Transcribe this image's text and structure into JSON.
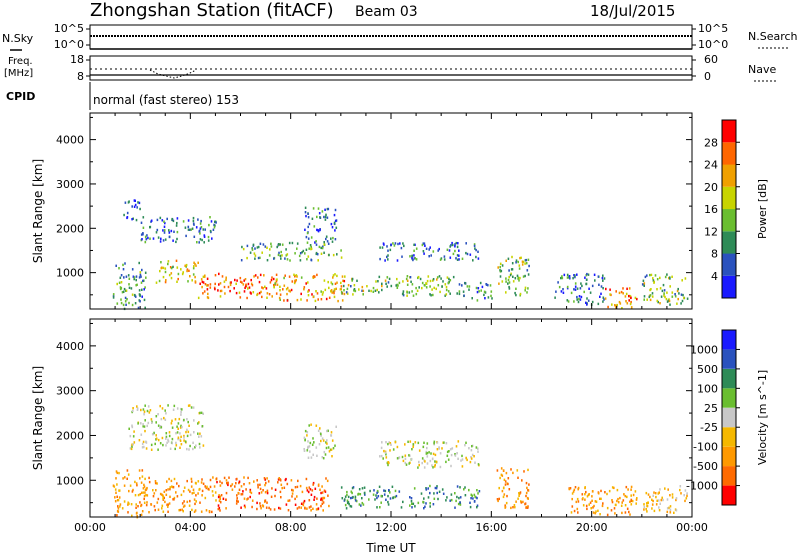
{
  "header": {
    "title": "Zhongshan Station (fitACF)",
    "beam": "Beam 03",
    "date": "18/Jul/2015"
  },
  "strips": {
    "nsky": {
      "label": "N.Sky",
      "top": "10^5",
      "bottom": "10^0"
    },
    "nsearch": {
      "label": "N.Search",
      "top": "10^5",
      "bottom": "10^0"
    },
    "freq": {
      "label_line1": "Freq.",
      "label_line2": "[MHz]",
      "top": "18",
      "bottom": "8"
    },
    "nave": {
      "label": "Nave",
      "top": "60",
      "bottom": "0"
    },
    "cpid": {
      "label": "CPID",
      "text": "normal (fast stereo) 153"
    }
  },
  "axes": {
    "xlabel": "Time UT",
    "ylabel": "Slant Range [km]"
  },
  "chart_data": [
    {
      "type": "heatmap",
      "title": "",
      "parameter": "Power",
      "units": "dB",
      "xlabel": "Time UT",
      "ylabel": "Slant Range [km]",
      "x_ticks": [
        "00:00",
        "04:00",
        "08:00",
        "12:00",
        "16:00",
        "20:00",
        "00:00"
      ],
      "xlim_hours": [
        0,
        24
      ],
      "y_ticks": [
        1000,
        2000,
        3000,
        4000
      ],
      "ylim": [
        180,
        4600
      ],
      "colorbar": {
        "label": "Power [dB]",
        "ticks": [
          4,
          8,
          12,
          16,
          20,
          24,
          28
        ],
        "range": [
          0,
          32
        ],
        "colors": [
          "#1a1aff",
          "#2a52be",
          "#2e8b57",
          "#6abe30",
          "#c8d400",
          "#f0a000",
          "#ff6600",
          "#ff0000"
        ]
      },
      "regions": [
        {
          "t": [
            0.9,
            2.2
          ],
          "r": [
            200,
            1250
          ],
          "level": 10
        },
        {
          "t": [
            1.3,
            2.0
          ],
          "r": [
            2200,
            2700
          ],
          "level": 6
        },
        {
          "t": [
            2.0,
            5.0
          ],
          "r": [
            1700,
            2300
          ],
          "level": 8
        },
        {
          "t": [
            2.6,
            4.3
          ],
          "r": [
            800,
            1300
          ],
          "level": 18
        },
        {
          "t": [
            4.3,
            7.5
          ],
          "r": [
            450,
            1000
          ],
          "level": 26
        },
        {
          "t": [
            7.3,
            10.2
          ],
          "r": [
            380,
            1000
          ],
          "level": 22
        },
        {
          "t": [
            6.0,
            10.0
          ],
          "r": [
            1300,
            1700
          ],
          "level": 12
        },
        {
          "t": [
            8.5,
            9.8
          ],
          "r": [
            1700,
            2500
          ],
          "level": 8
        },
        {
          "t": [
            10.0,
            14.8
          ],
          "r": [
            500,
            950
          ],
          "level": 14
        },
        {
          "t": [
            11.5,
            15.5
          ],
          "r": [
            1300,
            1700
          ],
          "level": 7
        },
        {
          "t": [
            14.5,
            16.0
          ],
          "r": [
            400,
            800
          ],
          "level": 9
        },
        {
          "t": [
            16.2,
            17.5
          ],
          "r": [
            500,
            1400
          ],
          "level": 14
        },
        {
          "t": [
            18.5,
            20.5
          ],
          "r": [
            300,
            1000
          ],
          "level": 8
        },
        {
          "t": [
            20.5,
            21.8
          ],
          "r": [
            200,
            700
          ],
          "level": 24
        },
        {
          "t": [
            22.0,
            23.8
          ],
          "r": [
            300,
            1000
          ],
          "level": 14
        }
      ]
    },
    {
      "type": "heatmap",
      "title": "",
      "parameter": "Velocity",
      "units": "m s^-1",
      "xlabel": "Time UT",
      "ylabel": "Slant Range [km]",
      "x_ticks": [
        "00:00",
        "04:00",
        "08:00",
        "12:00",
        "16:00",
        "20:00",
        "00:00"
      ],
      "xlim_hours": [
        0,
        24
      ],
      "y_ticks": [
        1000,
        2000,
        3000,
        4000
      ],
      "ylim": [
        180,
        4600
      ],
      "colorbar": {
        "label": "Velocity [m s^-1]",
        "ticks": [
          "-1000",
          "-500",
          "-100",
          "-25",
          "25",
          "100",
          "500",
          "1000"
        ],
        "colors": [
          "#ff0000",
          "#ff6a00",
          "#ff9900",
          "#f5b800",
          "#c8c8c8",
          "#6abe30",
          "#2e8b57",
          "#2a52be",
          "#1a1aff"
        ]
      },
      "regions": [
        {
          "t": [
            0.9,
            2.2
          ],
          "r": [
            200,
            1250
          ],
          "level": 2
        },
        {
          "t": [
            1.5,
            4.5
          ],
          "r": [
            1700,
            2700
          ],
          "level": 4
        },
        {
          "t": [
            2.2,
            5.0
          ],
          "r": [
            300,
            1100
          ],
          "level": 2
        },
        {
          "t": [
            5.0,
            9.5
          ],
          "r": [
            350,
            1100
          ],
          "level": 1
        },
        {
          "t": [
            8.5,
            9.8
          ],
          "r": [
            1500,
            2300
          ],
          "level": 4
        },
        {
          "t": [
            10.0,
            15.5
          ],
          "r": [
            400,
            900
          ],
          "level": 6
        },
        {
          "t": [
            11.5,
            15.5
          ],
          "r": [
            1300,
            1900
          ],
          "level": 4
        },
        {
          "t": [
            16.2,
            17.5
          ],
          "r": [
            400,
            1300
          ],
          "level": 2
        },
        {
          "t": [
            19.0,
            21.8
          ],
          "r": [
            250,
            900
          ],
          "level": 2
        },
        {
          "t": [
            22.0,
            23.8
          ],
          "r": [
            300,
            900
          ],
          "level": 3
        }
      ]
    }
  ]
}
